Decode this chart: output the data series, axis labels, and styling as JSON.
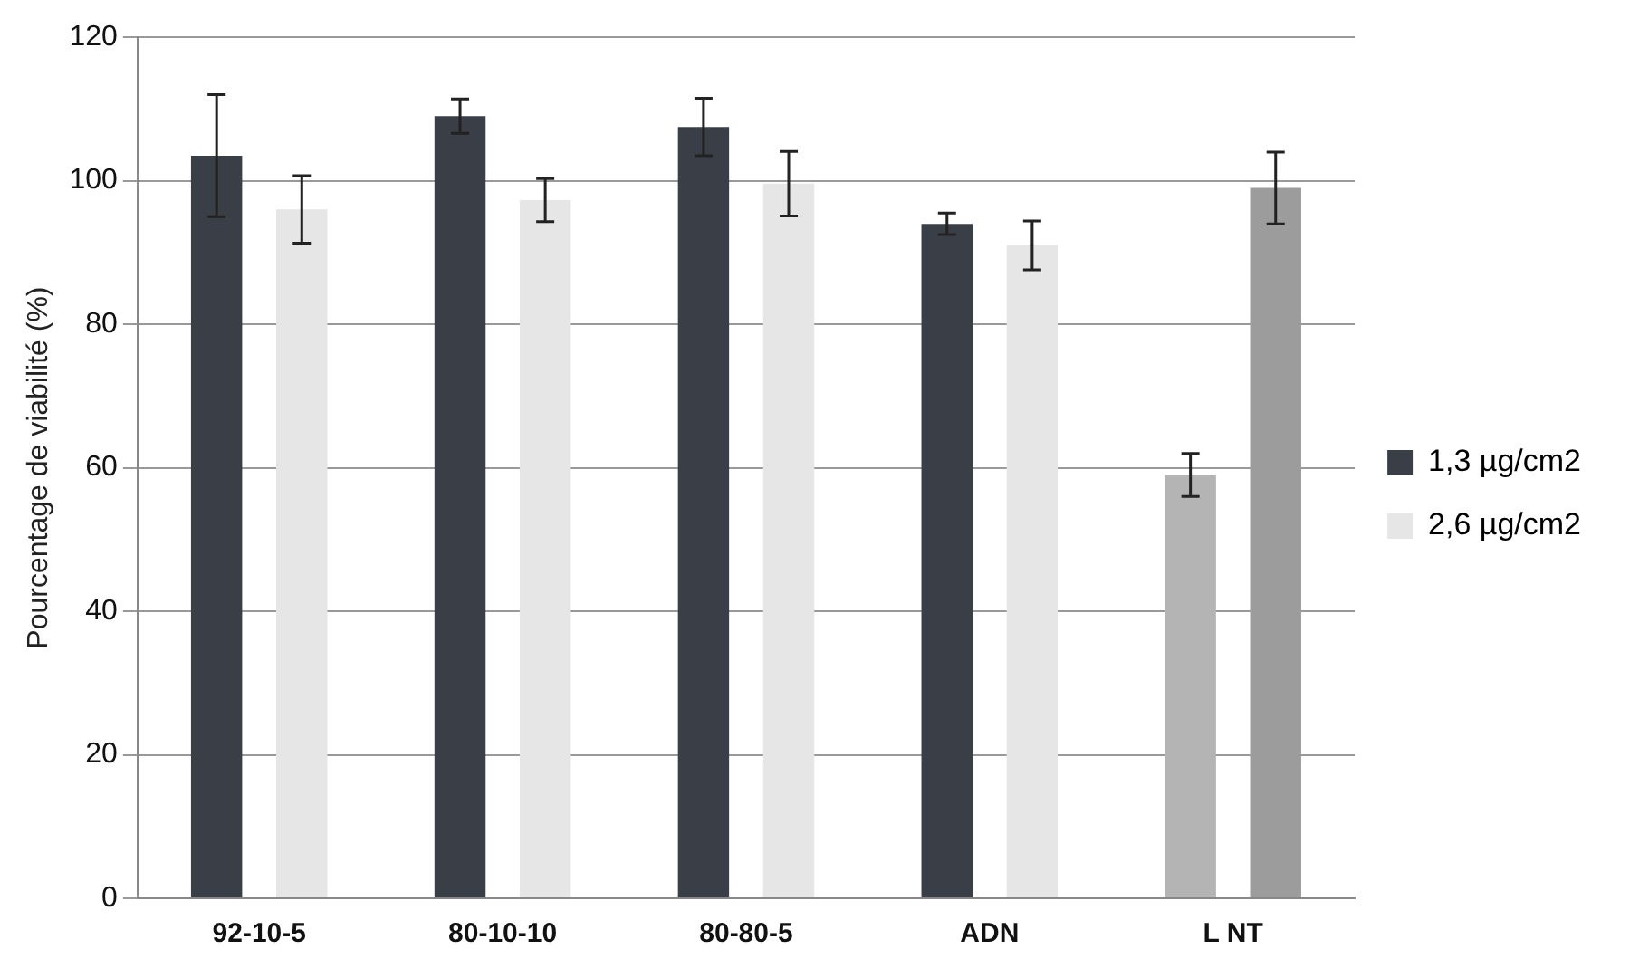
{
  "chart_data": {
    "type": "bar",
    "ylabel": "Pourcentage de viabilité (%)",
    "categories": [
      "92-10-5",
      "80-10-10",
      "80-80-5",
      "ADN",
      "L NT"
    ],
    "series": [
      {
        "name": "1,3 µg/cm2",
        "color": "#3a3f47",
        "colors": [
          "#3a3f47",
          "#3a3f47",
          "#3a3f47",
          "#3a3f47",
          "#b4b4b4"
        ],
        "values": [
          103.5,
          109,
          107.5,
          94,
          59
        ],
        "errors": [
          8.5,
          2.4,
          4,
          1.5,
          3
        ]
      },
      {
        "name": "2,6 µg/cm2",
        "color": "#e6e6e6",
        "colors": [
          "#e6e6e6",
          "#e6e6e6",
          "#e6e6e6",
          "#e6e6e6",
          "#9c9c9c"
        ],
        "values": [
          96,
          97.3,
          99.6,
          91,
          99
        ],
        "errors": [
          4.7,
          3,
          4.5,
          3.4,
          5
        ]
      }
    ],
    "ylim": [
      0,
      120
    ],
    "yticks": [
      0,
      20,
      40,
      60,
      80,
      100,
      120
    ],
    "grid": "y",
    "legend": "right"
  }
}
